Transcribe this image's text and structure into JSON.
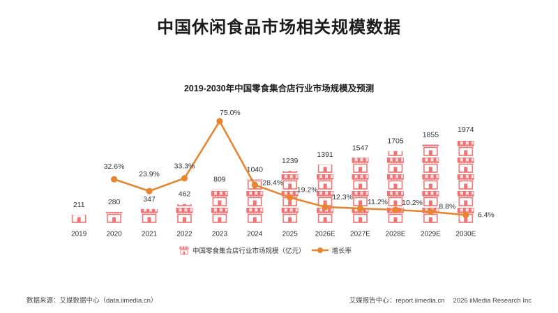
{
  "slide": {
    "title": "中国休闲食品市场相关规模数据"
  },
  "chart_data": {
    "type": "bar",
    "title": "2019-2030年中国零食集合店行业市场规模及预测",
    "categories": [
      "2019",
      "2020",
      "2021",
      "2022",
      "2023",
      "2024",
      "2025",
      "2026E",
      "2027E",
      "2028E",
      "2029E",
      "2030E"
    ],
    "series": [
      {
        "name": "中国零食集合店行业市场规模（亿元）",
        "type": "bar",
        "style": "pictograph",
        "icon": "shop-icon",
        "color": "#f07272",
        "values": [
          211,
          280,
          347,
          462,
          809,
          1040,
          1239,
          1391,
          1547,
          1705,
          1855,
          1974
        ]
      },
      {
        "name": "增长率",
        "type": "line",
        "axis": "secondary",
        "color": "#e8852f",
        "values": [
          null,
          32.6,
          23.9,
          33.3,
          75.0,
          28.4,
          19.2,
          12.3,
          11.2,
          10.2,
          8.8,
          6.4
        ],
        "data_labels": [
          null,
          "32.6%",
          "23.9%",
          "33.3%",
          "75.0%",
          "28.4%",
          "19.2%",
          "12.3%",
          "11.2%",
          "10.2%",
          "8.8%",
          "6.4%"
        ]
      }
    ],
    "ylim": [
      0,
      3300
    ],
    "y2lim": [
      0,
      103
    ],
    "grid": false,
    "legend": "bottom"
  },
  "footer": {
    "source": "数据来源：艾媒数据中心（data.iimedia.cn）",
    "report_center": "艾媒报告中心：report.iimedia.cn",
    "copyright": "2026 iiMedia Research Inc"
  }
}
